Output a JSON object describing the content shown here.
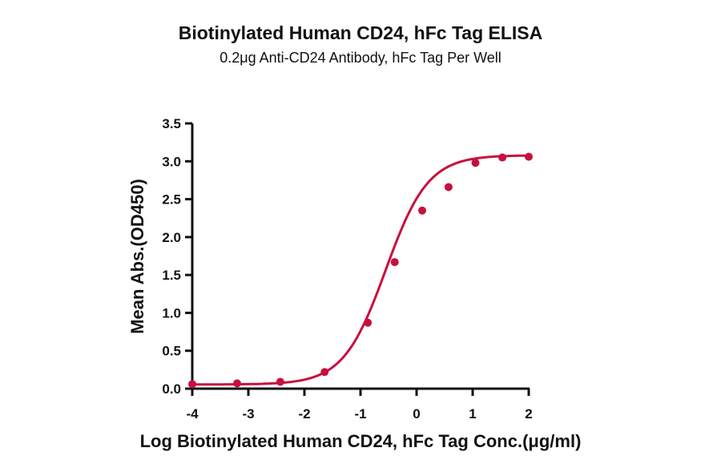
{
  "chart_data": {
    "type": "scatter",
    "title": "Biotinylated Human CD24, hFc Tag ELISA",
    "subtitle": "0.2μg Anti-CD24 Antibody, hFc Tag Per Well",
    "xlabel": "Log Biotinylated Human CD24, hFc Tag Conc.(μg/ml)",
    "ylabel": "Mean Abs.(OD450)",
    "xlim": [
      -4,
      2
    ],
    "ylim": [
      0,
      3.5
    ],
    "x_ticks": [
      "-4",
      "-3",
      "-2",
      "-1",
      "0",
      "1",
      "2"
    ],
    "y_ticks": [
      "0.0",
      "0.5",
      "1.0",
      "1.5",
      "2.0",
      "2.5",
      "3.0",
      "3.5"
    ],
    "grid": false,
    "legend": "none",
    "fit": "4-parameter logistic curve",
    "series": [
      {
        "name": "Biotinylated Human CD24, hFc Tag",
        "color": "#c8103e",
        "x": [
          -4.0,
          -3.2,
          -2.43,
          -1.64,
          -0.87,
          -0.39,
          0.1,
          0.57,
          1.05,
          1.53,
          2.0
        ],
        "y": [
          0.06,
          0.07,
          0.09,
          0.22,
          0.87,
          1.67,
          2.35,
          2.66,
          2.98,
          3.05,
          3.06
        ]
      }
    ]
  }
}
